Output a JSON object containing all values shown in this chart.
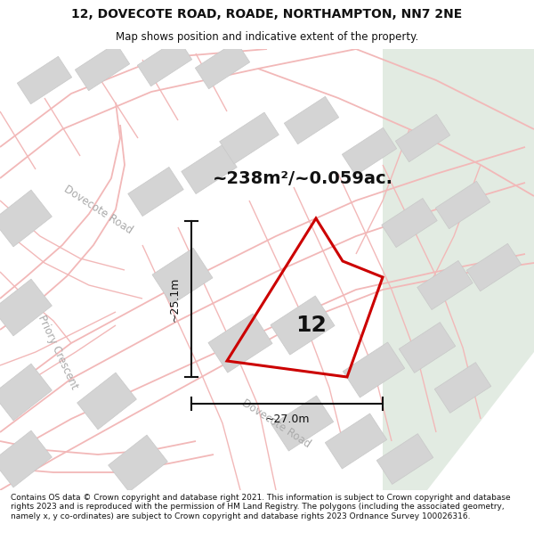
{
  "title_line1": "12, DOVECOTE ROAD, ROADE, NORTHAMPTON, NN7 2NE",
  "title_line2": "Map shows position and indicative extent of the property.",
  "area_label": "~238m²/~0.059ac.",
  "number_label": "12",
  "dim_vertical": "~25.1m",
  "dim_horizontal": "~27.0m",
  "road_label_upper": "Dovecote Road",
  "road_label_lower": "Dovecote Road",
  "road_label_priory": "Priory Crescent",
  "footer_text": "Contains OS data © Crown copyright and database right 2021. This information is subject to Crown copyright and database rights 2023 and is reproduced with the permission of HM Land Registry. The polygons (including the associated geometry, namely x, y co-ordinates) are subject to Crown copyright and database rights 2023 Ordnance Survey 100026316.",
  "map_bg": "#eeeeee",
  "road_color": "#f2b8b8",
  "building_color": "#d4d4d4",
  "building_edge": "#c8c8c8",
  "plot_color": "#cc0000",
  "dim_color": "#111111",
  "green_color": "#e2ebe2",
  "header_bg": "#ffffff",
  "footer_bg": "#ffffff",
  "road_lw": 1.3,
  "plot_lw": 2.2
}
